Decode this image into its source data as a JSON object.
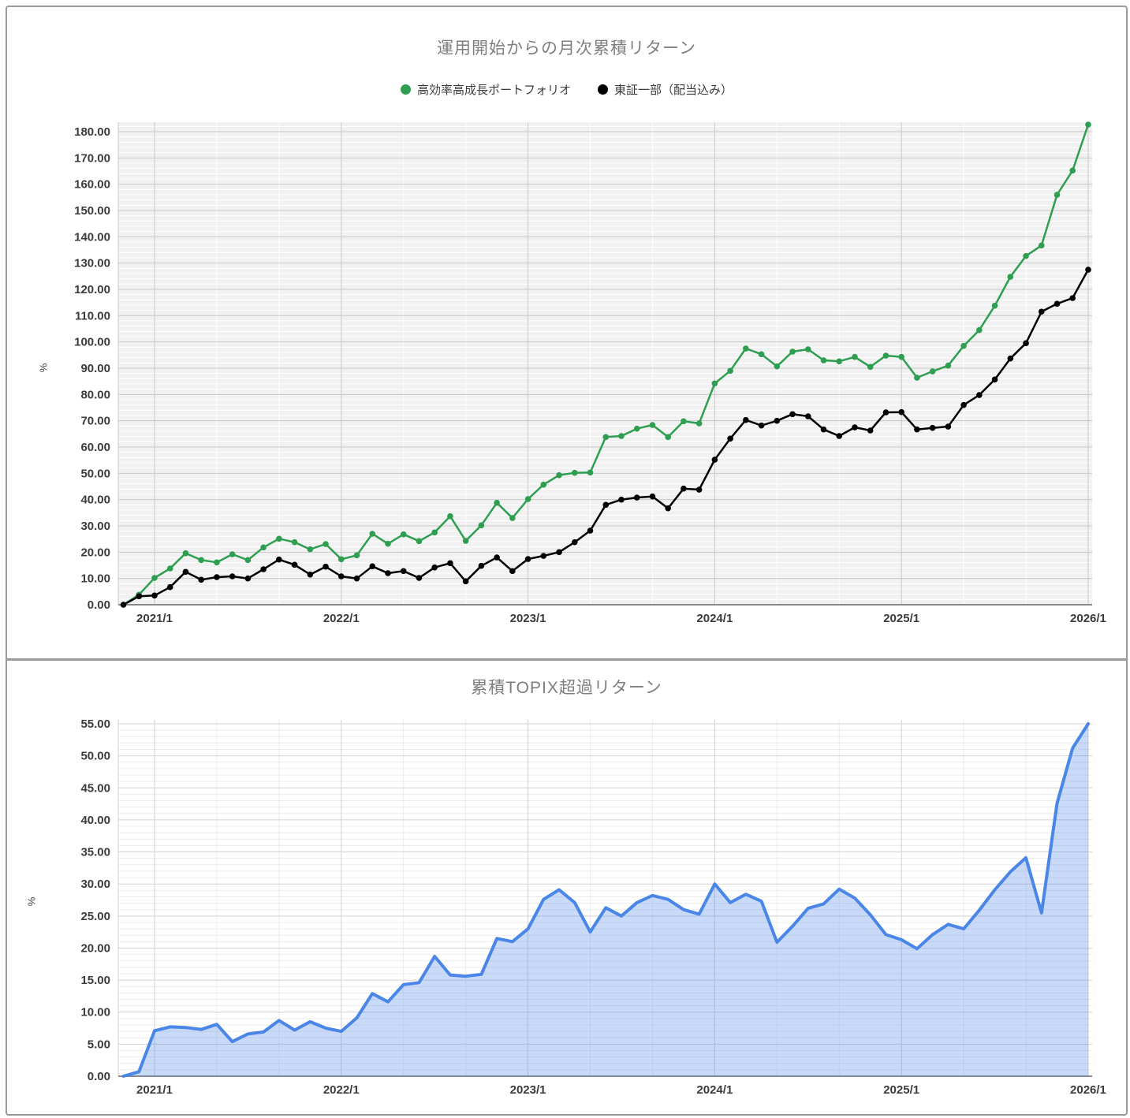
{
  "panels": {
    "top": {
      "title": "運用開始からの月次累積リターン",
      "y_axis_title": "%",
      "legend": [
        {
          "label": "高効率高成長ポートフォリオ",
          "color": "#2e9e50"
        },
        {
          "label": "東証一部（配当込み）",
          "color": "#000000"
        }
      ]
    },
    "bottom": {
      "title": "累積TOPIX超過リターン",
      "y_axis_title": "%"
    }
  },
  "chart_data": [
    {
      "type": "line",
      "title": "運用開始からの月次累積リターン",
      "xlabel": "",
      "ylabel": "%",
      "ylim": [
        0,
        184
      ],
      "grid": true,
      "legend_position": "top",
      "x": [
        "2020/11",
        "2020/12",
        "2021/1",
        "2021/2",
        "2021/3",
        "2021/4",
        "2021/5",
        "2021/6",
        "2021/7",
        "2021/8",
        "2021/9",
        "2021/10",
        "2021/11",
        "2021/12",
        "2022/1",
        "2022/2",
        "2022/3",
        "2022/4",
        "2022/5",
        "2022/6",
        "2022/7",
        "2022/8",
        "2022/9",
        "2022/10",
        "2022/11",
        "2022/12",
        "2023/1",
        "2023/2",
        "2023/3",
        "2023/4",
        "2023/5",
        "2023/6",
        "2023/7",
        "2023/8",
        "2023/9",
        "2023/10",
        "2023/11",
        "2023/12",
        "2024/1",
        "2024/2",
        "2024/3",
        "2024/4",
        "2024/5",
        "2024/6",
        "2024/7",
        "2024/8",
        "2024/9",
        "2024/10",
        "2024/11",
        "2024/12",
        "2025/1",
        "2025/2",
        "2025/3",
        "2025/4",
        "2025/5",
        "2025/6",
        "2025/7",
        "2025/8",
        "2025/9",
        "2025/10",
        "2025/11",
        "2025/12",
        "2026/1"
      ],
      "x_tick_labels": [
        "2021/1",
        "2022/1",
        "2023/1",
        "2024/1",
        "2025/1",
        "2026/1"
      ],
      "x_tick_indices": [
        2,
        14,
        26,
        38,
        50,
        62
      ],
      "y_tick_values": [
        0,
        10,
        20,
        30,
        40,
        50,
        60,
        70,
        80,
        90,
        100,
        110,
        120,
        130,
        140,
        150,
        160,
        170,
        180
      ],
      "y_tick_labels": [
        "0.00",
        "10.00",
        "20.00",
        "30.00",
        "40.00",
        "50.00",
        "60.00",
        "70.00",
        "80.00",
        "90.00",
        "100.00",
        "110.00",
        "120.00",
        "130.00",
        "140.00",
        "150.00",
        "160.00",
        "170.00",
        "180.00"
      ],
      "series": [
        {
          "name": "高効率高成長ポートフォリオ",
          "color": "#2e9e50",
          "values": [
            0,
            3.8,
            10.2,
            13.8,
            19.6,
            17.0,
            16.1,
            19.2,
            17.0,
            21.8,
            25.1,
            23.8,
            21.1,
            23.1,
            17.3,
            18.8,
            27.0,
            23.2,
            26.8,
            24.2,
            27.5,
            33.7,
            24.3,
            30.2,
            38.8,
            33.0,
            40.2,
            45.7,
            49.3,
            50.2,
            50.3,
            63.8,
            64.2,
            67.0,
            68.4,
            63.8,
            69.8,
            69.0,
            84.2,
            89.0,
            97.5,
            95.3,
            90.7,
            96.3,
            97.2,
            93.0,
            92.6,
            94.3,
            90.5,
            94.8,
            94.3,
            86.4,
            88.8,
            91.0,
            98.5,
            104.5,
            113.8,
            124.8,
            132.7,
            136.7,
            156.0,
            165.2,
            182.7
          ]
        },
        {
          "name": "東証一部（配当込み）",
          "color": "#000000",
          "values": [
            0,
            3.2,
            3.5,
            6.7,
            12.5,
            9.5,
            10.5,
            10.8,
            10.0,
            13.5,
            17.2,
            15.2,
            11.5,
            14.5,
            10.8,
            10.0,
            14.6,
            12.0,
            12.8,
            10.2,
            14.2,
            15.8,
            8.9,
            14.8,
            18.0,
            12.8,
            17.4,
            18.6,
            20.0,
            23.8,
            28.2,
            38.0,
            40.0,
            40.8,
            41.2,
            36.7,
            44.2,
            43.8,
            55.2,
            63.2,
            70.3,
            68.2,
            70.0,
            72.5,
            71.7,
            66.7,
            64.2,
            67.5,
            66.3,
            73.2,
            73.3,
            66.7,
            67.3,
            67.8,
            76.0,
            79.8,
            85.7,
            93.7,
            99.5,
            111.5,
            114.5,
            116.7,
            127.5
          ]
        }
      ]
    },
    {
      "type": "area",
      "title": "累積TOPIX超過リターン",
      "xlabel": "",
      "ylabel": "%",
      "ylim": [
        0,
        55.6
      ],
      "grid": true,
      "legend_position": "none",
      "x": [
        "2020/11",
        "2020/12",
        "2021/1",
        "2021/2",
        "2021/3",
        "2021/4",
        "2021/5",
        "2021/6",
        "2021/7",
        "2021/8",
        "2021/9",
        "2021/10",
        "2021/11",
        "2021/12",
        "2022/1",
        "2022/2",
        "2022/3",
        "2022/4",
        "2022/5",
        "2022/6",
        "2022/7",
        "2022/8",
        "2022/9",
        "2022/10",
        "2022/11",
        "2022/12",
        "2023/1",
        "2023/2",
        "2023/3",
        "2023/4",
        "2023/5",
        "2023/6",
        "2023/7",
        "2023/8",
        "2023/9",
        "2023/10",
        "2023/11",
        "2023/12",
        "2024/1",
        "2024/2",
        "2024/3",
        "2024/4",
        "2024/5",
        "2024/6",
        "2024/7",
        "2024/8",
        "2024/9",
        "2024/10",
        "2024/11",
        "2024/12",
        "2025/1",
        "2025/2",
        "2025/3",
        "2025/4",
        "2025/5",
        "2025/6",
        "2025/7",
        "2025/8",
        "2025/9",
        "2025/10",
        "2025/11",
        "2025/12",
        "2026/1"
      ],
      "x_tick_labels": [
        "2021/1",
        "2022/1",
        "2023/1",
        "2024/1",
        "2025/1",
        "2026/1"
      ],
      "x_tick_indices": [
        2,
        14,
        26,
        38,
        50,
        62
      ],
      "y_tick_values": [
        0,
        5,
        10,
        15,
        20,
        25,
        30,
        35,
        40,
        45,
        50,
        55
      ],
      "y_tick_labels": [
        "0.00",
        "5.00",
        "10.00",
        "15.00",
        "20.00",
        "25.00",
        "30.00",
        "35.00",
        "40.00",
        "45.00",
        "50.00",
        "55.00"
      ],
      "series": [
        {
          "name": "累積TOPIX超過リターン",
          "color": "#4a86e8",
          "fill_opacity": 0.3,
          "values": [
            0,
            0.7,
            7.1,
            7.7,
            7.6,
            7.3,
            8.1,
            5.4,
            6.6,
            6.9,
            8.7,
            7.2,
            8.5,
            7.5,
            7.0,
            9.1,
            12.9,
            11.6,
            14.3,
            14.6,
            18.7,
            15.8,
            15.6,
            15.9,
            21.5,
            21.0,
            23.0,
            27.6,
            29.1,
            27.1,
            22.5,
            26.3,
            25.0,
            27.1,
            28.2,
            27.6,
            26.0,
            25.3,
            30.0,
            27.1,
            28.4,
            27.3,
            20.9,
            23.4,
            26.2,
            26.9,
            29.2,
            27.8,
            25.2,
            22.1,
            21.3,
            19.9,
            22.1,
            23.7,
            23.0,
            25.9,
            29.1,
            31.9,
            34.1,
            25.5,
            42.6,
            51.2,
            55.0
          ]
        }
      ]
    }
  ]
}
